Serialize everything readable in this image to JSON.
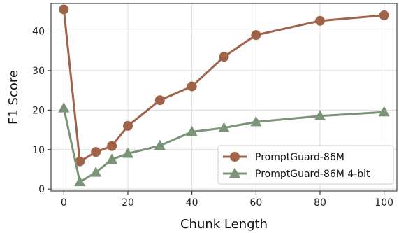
{
  "chart_data": {
    "type": "line",
    "xlabel": "Chunk Length",
    "ylabel": "F1 Score",
    "xlim": [
      -4,
      104
    ],
    "ylim": [
      -0.5,
      47
    ],
    "xticks": [
      0,
      20,
      40,
      60,
      80,
      100
    ],
    "yticks": [
      0,
      10,
      20,
      30,
      40
    ],
    "x_tick_labels": [
      "0",
      "20",
      "40",
      "60",
      "80",
      "100"
    ],
    "y_tick_labels": [
      "0",
      "10",
      "20",
      "30",
      "40"
    ],
    "grid": true,
    "legend_position": "lower-right",
    "series": [
      {
        "name": "PromptGuard-86M",
        "marker": "circle",
        "color": "#a0634a",
        "x": [
          0,
          5,
          10,
          15,
          20,
          30,
          40,
          50,
          60,
          80,
          100
        ],
        "y": [
          45.5,
          7.0,
          9.4,
          10.9,
          16.0,
          22.5,
          26.0,
          33.5,
          39.0,
          42.6,
          44.0
        ]
      },
      {
        "name": "PromptGuard-86M 4-bit",
        "marker": "triangle",
        "color": "#7a9478",
        "x": [
          0,
          5,
          10,
          15,
          20,
          30,
          40,
          50,
          60,
          80,
          100
        ],
        "y": [
          20.5,
          1.8,
          4.2,
          7.5,
          9.0,
          11.0,
          14.5,
          15.5,
          17.0,
          18.5,
          19.5
        ]
      }
    ]
  }
}
